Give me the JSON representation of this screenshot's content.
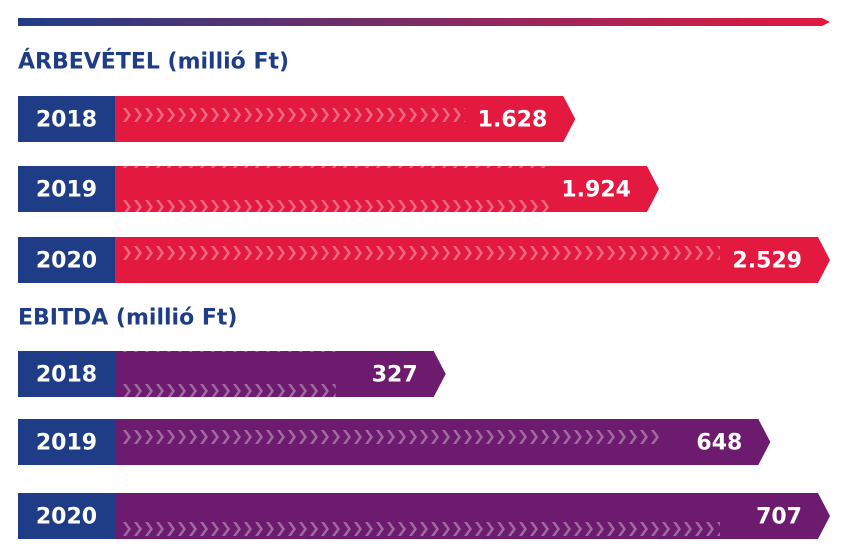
{
  "chart_data": [
    {
      "type": "bar",
      "orientation": "horizontal",
      "title": "ÁRBEVÉTEL (millió Ft)",
      "categories": [
        "2018",
        "2019",
        "2020"
      ],
      "values": [
        1628,
        1924,
        2529
      ],
      "value_labels": [
        "1.628",
        "1.924",
        "2.529"
      ],
      "color": "#e3193f",
      "category_color": "#1f3d87"
    },
    {
      "type": "bar",
      "orientation": "horizontal",
      "title": "EBITDA (millió Ft)",
      "categories": [
        "2018",
        "2019",
        "2020"
      ],
      "values": [
        327,
        648,
        707
      ],
      "value_labels": [
        "327",
        "648",
        "707"
      ],
      "color": "#6c1b6e",
      "category_color": "#1f3d87"
    }
  ]
}
